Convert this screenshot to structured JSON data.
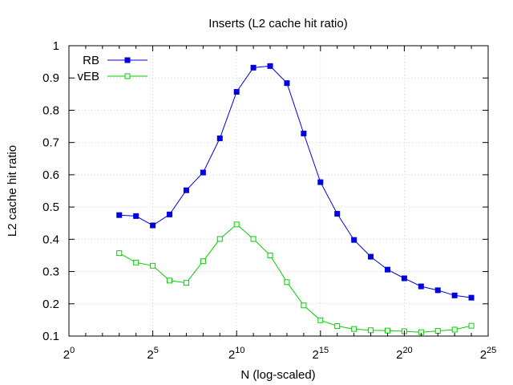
{
  "chart_data": {
    "type": "line",
    "title": "Inserts (L2 cache hit ratio)",
    "xlabel": "N (log-scaled)",
    "ylabel": "L2 cache hit ratio",
    "x_scale": "log2",
    "x_tick_base": "2",
    "x_ticks": [
      {
        "exp": 0,
        "label": "0"
      },
      {
        "exp": 5,
        "label": "5"
      },
      {
        "exp": 10,
        "label": "10"
      },
      {
        "exp": 15,
        "label": "15"
      },
      {
        "exp": 20,
        "label": "20"
      },
      {
        "exp": 25,
        "label": "25"
      }
    ],
    "xlim": [
      0,
      25
    ],
    "ylim": [
      0.1,
      1.0
    ],
    "y_ticks": [
      {
        "value": 0.1,
        "label": "0.1"
      },
      {
        "value": 0.2,
        "label": "0.2"
      },
      {
        "value": 0.3,
        "label": "0.3"
      },
      {
        "value": 0.4,
        "label": "0.4"
      },
      {
        "value": 0.5,
        "label": "0.5"
      },
      {
        "value": 0.6,
        "label": "0.6"
      },
      {
        "value": 0.7,
        "label": "0.7"
      },
      {
        "value": 0.8,
        "label": "0.8"
      },
      {
        "value": 0.9,
        "label": "0.9"
      },
      {
        "value": 1.0,
        "label": "1"
      }
    ],
    "grid": true,
    "legend_position": "top-left",
    "x": [
      3,
      4,
      5,
      6,
      7,
      8,
      9,
      10,
      11,
      12,
      13,
      14,
      15,
      16,
      17,
      18,
      19,
      20,
      21,
      22,
      23,
      24
    ],
    "series": [
      {
        "name": "RB",
        "color": "#0000e0",
        "marker": "filled-square",
        "values": [
          0.475,
          0.472,
          0.443,
          0.477,
          0.552,
          0.607,
          0.713,
          0.857,
          0.932,
          0.937,
          0.884,
          0.728,
          0.577,
          0.479,
          0.398,
          0.346,
          0.306,
          0.279,
          0.254,
          0.242,
          0.226,
          0.219
        ]
      },
      {
        "name": "vEB",
        "color": "#00d000",
        "marker": "open-square",
        "values": [
          0.357,
          0.328,
          0.318,
          0.272,
          0.265,
          0.332,
          0.401,
          0.446,
          0.401,
          0.35,
          0.267,
          0.195,
          0.149,
          0.131,
          0.122,
          0.118,
          0.117,
          0.115,
          0.112,
          0.116,
          0.12,
          0.132
        ]
      }
    ]
  }
}
